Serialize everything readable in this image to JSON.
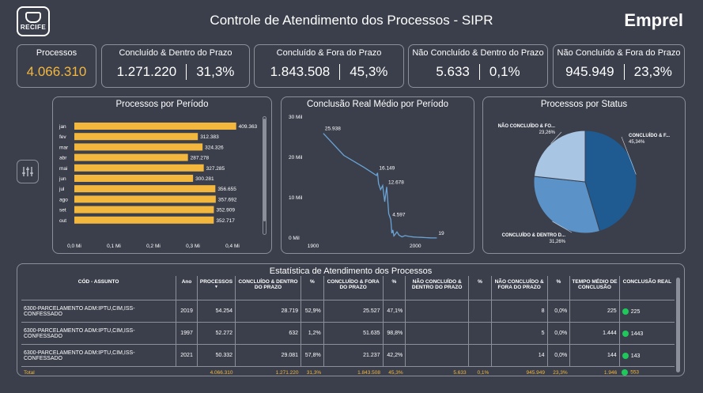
{
  "header": {
    "logo_text": "RECIFE",
    "title": "Controle de Atendimento dos Processos - SIPR",
    "brand": "Emprel"
  },
  "kpis": [
    {
      "label": "Processos",
      "value": "4.066.310",
      "pct": ""
    },
    {
      "label": "Concluído & Dentro do Prazo",
      "value": "1.271.220",
      "pct": "31,3%"
    },
    {
      "label": "Concluído & Fora do Prazo",
      "value": "1.843.508",
      "pct": "45,3%"
    },
    {
      "label": "Não Concluído & Dentro do Prazo",
      "value": "5.633",
      "pct": "0,1%"
    },
    {
      "label": "Não Concluído & Fora do Prazo",
      "value": "945.949",
      "pct": "23,3%"
    }
  ],
  "colors": {
    "accent": "#f4b73d",
    "bg": "#3b3f4b",
    "pie1": "#1f5a91",
    "pie2": "#5b93c9",
    "pie3": "#a8c6e4",
    "green": "#1fc85a"
  },
  "chart_data": [
    {
      "type": "bar",
      "title": "Processos por Período",
      "categories": [
        "jan",
        "fev",
        "mar",
        "abr",
        "mai",
        "jun",
        "jul",
        "ago",
        "set",
        "out"
      ],
      "values": [
        409363,
        312383,
        324326,
        287278,
        327285,
        300281,
        356655,
        357692,
        352909,
        352717
      ],
      "labels": [
        "409.363",
        "312.383",
        "324.326",
        "287.278",
        "327.285",
        "300.281",
        "356.655",
        "357.692",
        "352.909",
        "352.717"
      ],
      "x_ticks": [
        "0,0 Mi",
        "0,1 Mi",
        "0,2 Mi",
        "0,3 Mi",
        "0,4 Mi"
      ],
      "xlim": [
        0,
        400000
      ]
    },
    {
      "type": "line",
      "title": "Conclusão Real Médio por Período",
      "y_ticks": [
        "0 Mil",
        "10 Mil",
        "20 Mil",
        "30 Mil"
      ],
      "x_ticks": [
        "1900",
        "2000"
      ],
      "ylim": [
        0,
        30000
      ],
      "xlim": [
        1900,
        2030
      ],
      "points": [
        [
          1910,
          25938
        ],
        [
          1930,
          20500
        ],
        [
          1950,
          17500
        ],
        [
          1962,
          15500
        ],
        [
          1963,
          16149
        ],
        [
          1964,
          13500
        ],
        [
          1966,
          12000
        ],
        [
          1968,
          13000
        ],
        [
          1970,
          9000
        ],
        [
          1972,
          12678
        ],
        [
          1974,
          6000
        ],
        [
          1976,
          4597
        ],
        [
          1977,
          1200
        ],
        [
          1978,
          2000
        ],
        [
          1979,
          500
        ],
        [
          1980,
          800
        ],
        [
          1982,
          1500
        ],
        [
          1984,
          700
        ],
        [
          1987,
          300
        ],
        [
          1990,
          600
        ],
        [
          1994,
          400
        ],
        [
          1998,
          250
        ],
        [
          2002,
          200
        ],
        [
          2006,
          150
        ],
        [
          2010,
          100
        ],
        [
          2015,
          30
        ],
        [
          2021,
          19
        ]
      ],
      "point_labels": [
        {
          "x": 1910,
          "y": 25938,
          "text": "25.938"
        },
        {
          "x": 1963,
          "y": 16149,
          "text": "16.149"
        },
        {
          "x": 1972,
          "y": 12678,
          "text": "12.678"
        },
        {
          "x": 1976,
          "y": 4597,
          "text": "4.597"
        },
        {
          "x": 2021,
          "y": 19,
          "text": "19"
        }
      ]
    },
    {
      "type": "pie",
      "title": "Processos por Status",
      "slices": [
        {
          "label": "CONCLUÍDO & F...",
          "value": 45.34,
          "pct": "45,34%"
        },
        {
          "label": "CONCLUÍDO & DENTRO D...",
          "value": 31.26,
          "pct": "31,26%"
        },
        {
          "label": "NÃO CONCLUÍDO & FO...",
          "value": 23.26,
          "pct": "23,26%"
        }
      ]
    }
  ],
  "table": {
    "title": "Estatística de Atendimento dos Processos",
    "headers": [
      "CÓD - ASSUNTO",
      "Ano",
      "PROCESSOS",
      "CONCLUÍDO & DENTRO DO PRAZO",
      "%",
      "CONCLUÍDO & FORA DO PRAZO",
      "%",
      "NÃO CONCLUÍDO & DENTRO DO PRAZO",
      "%",
      "NÃO CONCLUÍDO & FORA DO PRAZO",
      "%",
      "TEMPO MÉDIO DE CONCLUSÃO",
      "CONCLUSÃO REAL"
    ],
    "rows": [
      [
        "6300-PARCELAMENTO ADM:IPTU,CIM,ISS-CONFESSADO",
        "2019",
        "54.254",
        "28.719",
        "52,9%",
        "25.527",
        "47,1%",
        "",
        "",
        "8",
        "0,0%",
        "225",
        "225"
      ],
      [
        "6300-PARCELAMENTO ADM:IPTU,CIM,ISS-CONFESSADO",
        "1997",
        "52.272",
        "632",
        "1,2%",
        "51.635",
        "98,8%",
        "",
        "",
        "5",
        "0,0%",
        "1.444",
        "1443"
      ],
      [
        "6300-PARCELAMENTO ADM:IPTU,CIM,ISS-CONFESSADO",
        "2021",
        "50.332",
        "29.081",
        "57,8%",
        "21.237",
        "42,2%",
        "",
        "",
        "14",
        "0,0%",
        "144",
        "143"
      ]
    ],
    "total": [
      "Total",
      "",
      "4.066.310",
      "1.271.220",
      "31,3%",
      "1.843.508",
      "45,3%",
      "5.633",
      "0,1%",
      "945.949",
      "23,3%",
      "1.946",
      "553"
    ]
  }
}
